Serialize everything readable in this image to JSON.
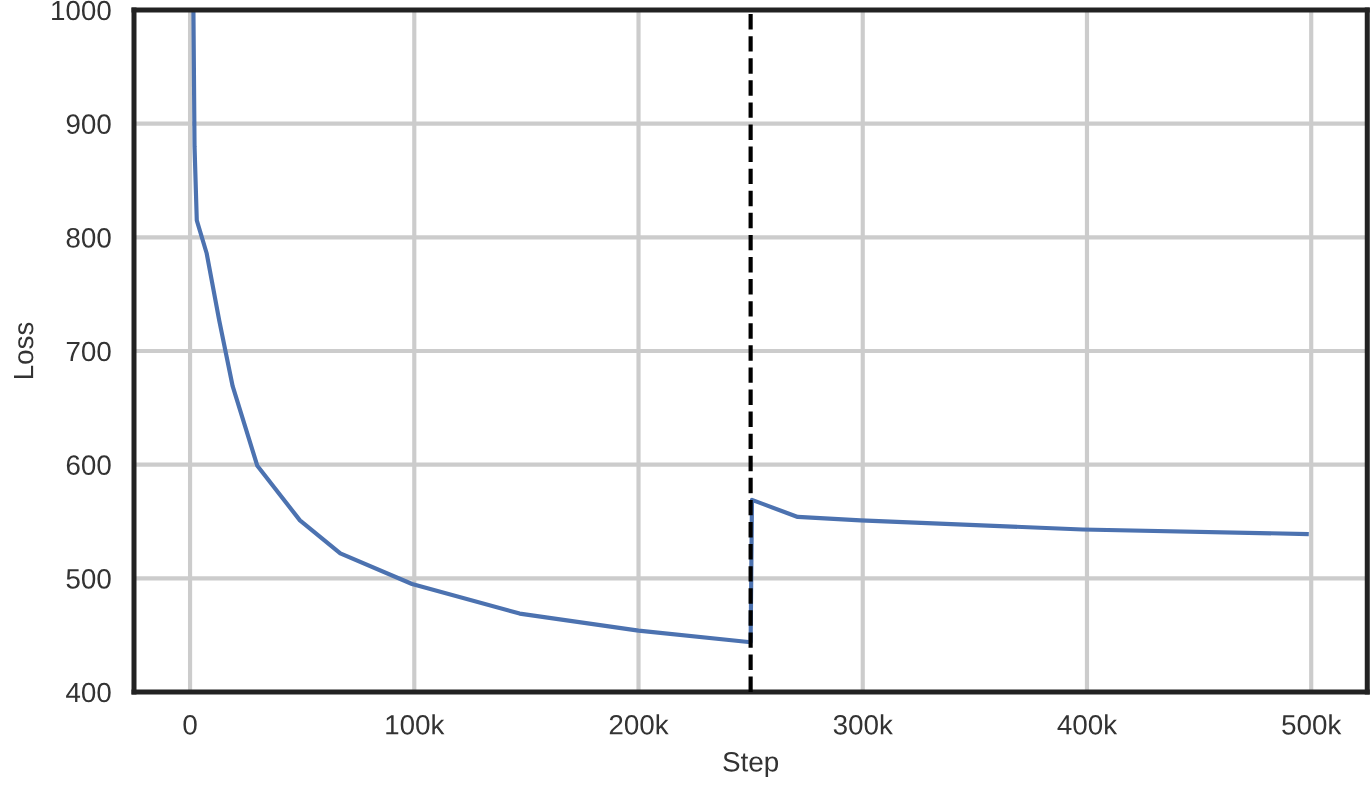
{
  "chart_data": {
    "type": "line",
    "xlabel": "Step",
    "ylabel": "Loss",
    "series": [
      {
        "color": "#4c72b0",
        "x": [
          1500,
          2000,
          3000,
          7400,
          13000,
          19000,
          30000,
          49000,
          67000,
          99000,
          147000,
          200000,
          249000,
          250000,
          250600,
          271000,
          299000,
          398000,
          498000
        ],
        "values": [
          1000,
          880,
          815,
          786,
          727,
          669,
          599,
          551,
          522,
          495,
          469,
          454,
          444,
          444,
          569,
          554,
          551,
          543,
          539
        ]
      }
    ],
    "xlim": [
      -25000,
      525000
    ],
    "ylim": [
      400,
      1000
    ],
    "xticks": [
      0,
      {
        "value": 100000,
        "label": "100k"
      },
      {
        "value": 200000,
        "label": "200k"
      },
      {
        "value": 300000,
        "label": "300k"
      },
      {
        "value": 400000,
        "label": "400k"
      },
      {
        "value": 500000,
        "label": "500k"
      }
    ],
    "yticks": [
      400,
      500,
      600,
      700,
      800,
      900,
      1000
    ],
    "ref_lines": [
      {
        "axis": "x",
        "value": 250000,
        "color": "#000000",
        "line_style": "dashed"
      }
    ],
    "grid": true
  }
}
